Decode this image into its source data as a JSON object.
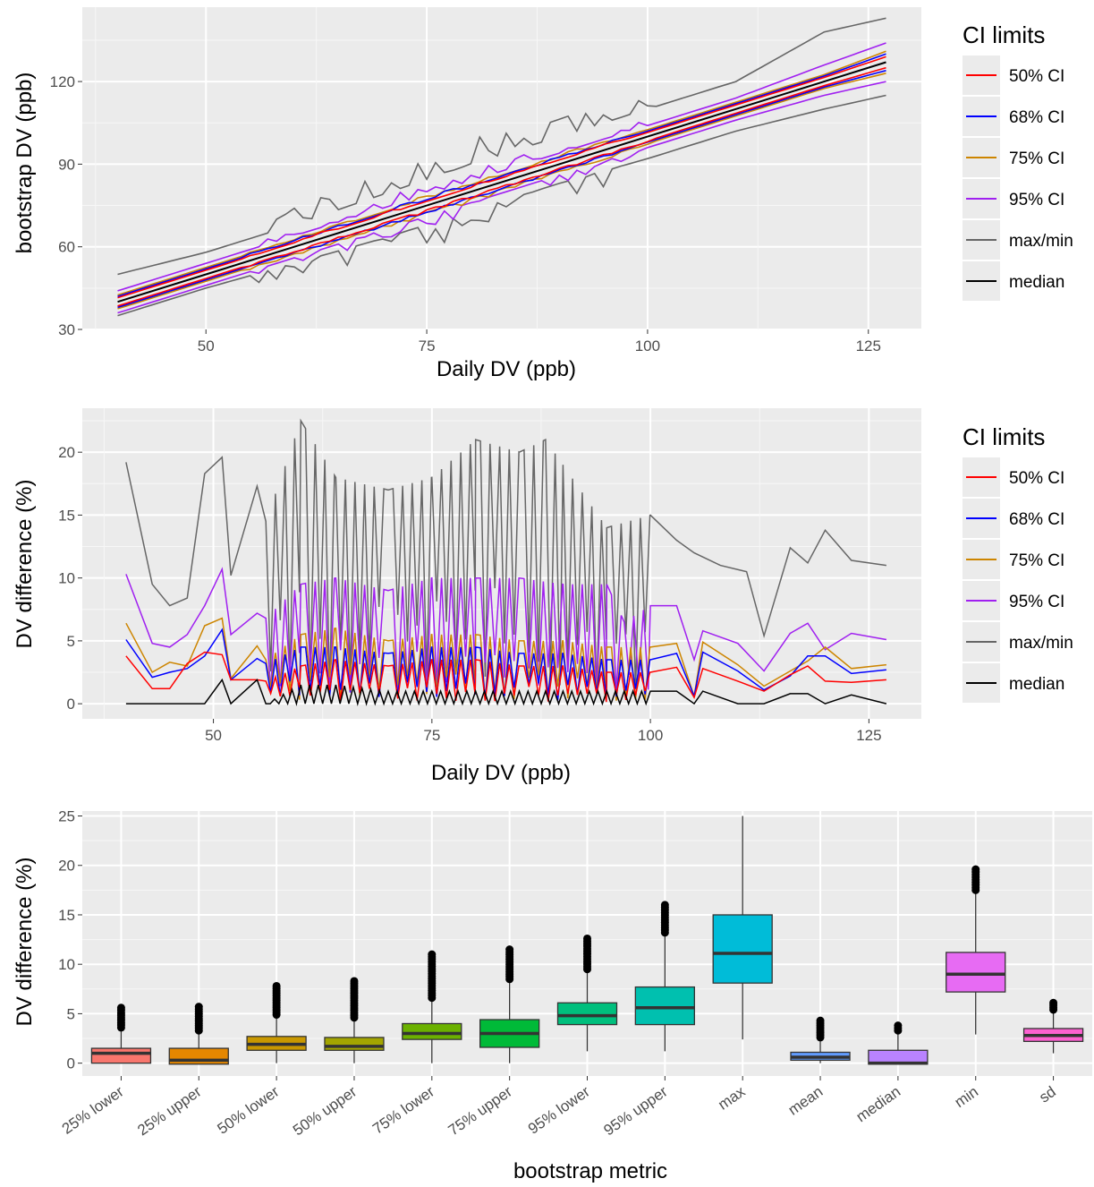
{
  "chart_data": [
    {
      "type": "line",
      "xlabel": "Daily DV (ppb)",
      "ylabel": "bootstrap DV (ppb)",
      "xlim": [
        36,
        131
      ],
      "ylim": [
        30,
        147
      ],
      "xticks": [
        "50",
        "75",
        "100",
        "125"
      ],
      "yticks": [
        "30",
        "60",
        "90",
        "120"
      ],
      "grid": true,
      "legend": {
        "title": "CI limits",
        "position": "right",
        "items": [
          "50% CI",
          "68% CI",
          "75% CI",
          "95% CI",
          "max/min",
          "median"
        ]
      },
      "series": [
        {
          "name": "50% CI",
          "color": "#ff0000",
          "x": [
            40,
            50,
            60,
            70,
            80,
            90,
            100,
            110,
            120,
            127
          ],
          "y_lower": [
            38.5,
            48.5,
            58.5,
            68.5,
            78.5,
            88.5,
            98.5,
            108.5,
            118.5,
            125
          ],
          "y_upper": [
            41.5,
            51.5,
            61.5,
            71.5,
            81.5,
            91.5,
            101.5,
            111.5,
            121.5,
            129
          ]
        },
        {
          "name": "68% CI",
          "color": "#0000ff",
          "x": [
            40,
            50,
            60,
            70,
            80,
            90,
            100,
            110,
            120,
            127
          ],
          "y_lower": [
            38,
            48,
            58,
            68,
            78,
            88,
            98,
            108,
            118,
            124
          ],
          "y_upper": [
            42,
            52,
            62,
            72,
            82,
            92,
            102,
            112,
            122,
            130
          ]
        },
        {
          "name": "75% CI",
          "color": "#cd8500",
          "x": [
            40,
            50,
            60,
            70,
            80,
            90,
            100,
            110,
            120,
            127
          ],
          "y_lower": [
            37.5,
            47.5,
            57.5,
            67.5,
            77.5,
            87.5,
            97.5,
            107.5,
            117.5,
            123
          ],
          "y_upper": [
            42.5,
            52.5,
            62.5,
            72.5,
            82.5,
            92.5,
            102.5,
            112.5,
            122.5,
            131
          ]
        },
        {
          "name": "95% CI",
          "color": "#a020f0",
          "x": [
            40,
            50,
            60,
            70,
            80,
            90,
            100,
            110,
            120,
            127
          ],
          "y_lower": [
            36,
            46,
            56,
            66,
            76,
            86,
            96,
            106,
            115,
            120
          ],
          "y_upper": [
            44,
            54,
            64,
            74,
            84,
            94,
            104,
            114,
            126,
            134
          ]
        },
        {
          "name": "max/min",
          "color": "#666666",
          "x": [
            40,
            50,
            60,
            70,
            80,
            90,
            100,
            110,
            120,
            127
          ],
          "y_lower": [
            35,
            45,
            54,
            63,
            73,
            83,
            92,
            102,
            110,
            115
          ],
          "y_upper": [
            50,
            58,
            68,
            79,
            90,
            100,
            110,
            120,
            138,
            143
          ]
        },
        {
          "name": "median",
          "color": "#000000",
          "x": [
            40,
            50,
            60,
            70,
            80,
            90,
            100,
            110,
            120,
            127
          ],
          "y": [
            40,
            50,
            60,
            70,
            80,
            90,
            100,
            110,
            120,
            127
          ]
        }
      ]
    },
    {
      "type": "line",
      "xlabel": "Daily DV (ppb)",
      "ylabel": "DV difference (%)",
      "xlim": [
        35,
        131
      ],
      "ylim": [
        -1.2,
        23.5
      ],
      "xticks": [
        "50",
        "75",
        "100",
        "125"
      ],
      "yticks": [
        "0",
        "5",
        "10",
        "15",
        "20"
      ],
      "grid": true,
      "legend": {
        "title": "CI limits",
        "position": "right",
        "items": [
          "50% CI",
          "68% CI",
          "75% CI",
          "95% CI",
          "max/min",
          "median"
        ]
      },
      "series": [
        {
          "name": "max/min",
          "color": "#666666",
          "x": [
            40,
            43,
            45,
            47,
            49,
            51,
            52,
            55,
            56,
            60,
            64,
            70,
            75,
            80,
            85,
            88,
            90,
            95,
            100,
            103,
            105,
            108,
            111,
            113,
            116,
            118,
            120,
            123,
            127
          ],
          "y": [
            19.2,
            9.5,
            7.8,
            8.4,
            18.3,
            19.6,
            10.2,
            17.3,
            14.5,
            22.5,
            18,
            17,
            18,
            21,
            20,
            21,
            19,
            14,
            15,
            13,
            12,
            11,
            10.5,
            5.4,
            12.4,
            11.2,
            13.8,
            11.4,
            11
          ]
        },
        {
          "name": "95% CI",
          "color": "#a020f0",
          "x": [
            40,
            43,
            45,
            47,
            49,
            51,
            52,
            55,
            56,
            60,
            64,
            70,
            75,
            80,
            85,
            90,
            95,
            97,
            100,
            103,
            105,
            106,
            110,
            113,
            116,
            118,
            120,
            123,
            127
          ],
          "y": [
            10.3,
            4.8,
            4.5,
            5.5,
            7.8,
            10.7,
            5.5,
            7.2,
            6.8,
            9.5,
            10,
            9,
            10,
            10,
            10,
            9.5,
            9.5,
            6.5,
            7.8,
            7.8,
            3.5,
            5.8,
            4.8,
            2.6,
            5.6,
            6.4,
            4.3,
            5.6,
            5.1
          ]
        },
        {
          "name": "75% CI",
          "color": "#cd8500",
          "x": [
            40,
            43,
            45,
            47,
            49,
            51,
            52,
            55,
            56,
            60,
            64,
            70,
            75,
            80,
            85,
            90,
            95,
            100,
            103,
            105,
            106,
            110,
            113,
            116,
            118,
            120,
            123,
            127
          ],
          "y": [
            6.4,
            2.5,
            3.3,
            3,
            6.2,
            6.8,
            2,
            4.6,
            3.5,
            5.5,
            6,
            5,
            5.5,
            5.5,
            5,
            5,
            4.5,
            4.5,
            4.8,
            0.6,
            4.9,
            3.1,
            1.4,
            2.6,
            3.4,
            4.5,
            2.8,
            3.1
          ]
        },
        {
          "name": "68% CI",
          "color": "#0000ff",
          "x": [
            40,
            43,
            45,
            47,
            49,
            51,
            52,
            55,
            56,
            60,
            64,
            70,
            75,
            80,
            85,
            90,
            95,
            100,
            103,
            105,
            106,
            110,
            113,
            116,
            118,
            120,
            123,
            127
          ],
          "y": [
            5.1,
            2.1,
            2.5,
            2.8,
            3.8,
            5.9,
            1.9,
            3.6,
            3.2,
            4.5,
            4.5,
            4,
            4.5,
            4.5,
            4,
            4,
            3.5,
            3.5,
            4,
            0.6,
            4.1,
            2.6,
            1.1,
            2.2,
            3.8,
            3.8,
            2.4,
            2.7
          ]
        },
        {
          "name": "50% CI",
          "color": "#ff0000",
          "x": [
            40,
            43,
            45,
            47,
            49,
            51,
            52,
            55,
            56,
            60,
            64,
            70,
            75,
            80,
            85,
            90,
            95,
            100,
            103,
            105,
            106,
            110,
            113,
            116,
            118,
            120,
            123,
            127
          ],
          "y": [
            3.8,
            1.2,
            1.2,
            3.2,
            4.1,
            3.9,
            1.9,
            1.9,
            1.8,
            3,
            3.5,
            3,
            3.5,
            3.5,
            3,
            3,
            2.5,
            2.5,
            2.9,
            0.5,
            2.8,
            1.8,
            1,
            2.3,
            3,
            1.8,
            1.7,
            1.9
          ]
        },
        {
          "name": "median",
          "color": "#000000",
          "x": [
            40,
            43,
            45,
            47,
            49,
            51,
            52,
            55,
            56,
            60,
            64,
            70,
            75,
            80,
            85,
            90,
            95,
            100,
            103,
            105,
            106,
            110,
            113,
            116,
            118,
            120,
            123,
            127
          ],
          "y": [
            0,
            0,
            0,
            0,
            0,
            1.9,
            0,
            1.9,
            0,
            1.5,
            1.5,
            1,
            1,
            1,
            1,
            1,
            1,
            1,
            1,
            0,
            1,
            0,
            0,
            0.8,
            0.8,
            0,
            0.7,
            0
          ]
        }
      ]
    },
    {
      "type": "box",
      "xlabel": "bootstrap metric",
      "ylabel": "DV difference (%)",
      "ylim": [
        -1.3,
        25.5
      ],
      "yticks": [
        "0",
        "5",
        "10",
        "15",
        "20",
        "25"
      ],
      "grid": true,
      "categories": [
        "25% lower",
        "25% upper",
        "50% lower",
        "50% upper",
        "75% lower",
        "75% upper",
        "95% lower",
        "95% upper",
        "max",
        "mean",
        "median",
        "min",
        "sd"
      ],
      "colors": [
        "#f8766d",
        "#e58700",
        "#c99800",
        "#a3a500",
        "#6bb100",
        "#00ba38",
        "#00bf7d",
        "#00c0af",
        "#00bcd8",
        "#619cff",
        "#b983ff",
        "#e76bf3",
        "#fd61d1"
      ],
      "boxes": [
        {
          "q1": 0,
          "median": 1,
          "q3": 1.5,
          "whisker_low": 0,
          "whisker_high": 3.5,
          "outliers_min": 3.6,
          "outliers_max": 5.6
        },
        {
          "q1": -0.1,
          "median": 0.3,
          "q3": 1.5,
          "whisker_low": -0.1,
          "whisker_high": 3.2,
          "outliers_min": 3.3,
          "outliers_max": 5.7
        },
        {
          "q1": 1.3,
          "median": 1.9,
          "q3": 2.7,
          "whisker_low": 0,
          "whisker_high": 4.8,
          "outliers_min": 4.9,
          "outliers_max": 7.8
        },
        {
          "q1": 1.3,
          "median": 1.7,
          "q3": 2.6,
          "whisker_low": 0,
          "whisker_high": 4.5,
          "outliers_min": 4.6,
          "outliers_max": 8.3
        },
        {
          "q1": 2.4,
          "median": 3,
          "q3": 4,
          "whisker_low": 0,
          "whisker_high": 6.3,
          "outliers_min": 6.6,
          "outliers_max": 11
        },
        {
          "q1": 1.6,
          "median": 3,
          "q3": 4.4,
          "whisker_low": 0,
          "whisker_high": 8.3,
          "outliers_min": 8.5,
          "outliers_max": 11.5
        },
        {
          "q1": 3.9,
          "median": 4.8,
          "q3": 6.1,
          "whisker_low": 1.2,
          "whisker_high": 9.3,
          "outliers_min": 9.5,
          "outliers_max": 12.6
        },
        {
          "q1": 3.9,
          "median": 5.6,
          "q3": 7.7,
          "whisker_low": 1.2,
          "whisker_high": 13,
          "outliers_min": 13.2,
          "outliers_max": 16
        },
        {
          "q1": 8.1,
          "median": 11.1,
          "q3": 15,
          "whisker_low": 2.4,
          "whisker_high": 25,
          "outliers_min": null,
          "outliers_max": null
        },
        {
          "q1": 0.3,
          "median": 0.6,
          "q3": 1.1,
          "whisker_low": 0,
          "whisker_high": 2.4,
          "outliers_min": 2.6,
          "outliers_max": 4.3
        },
        {
          "q1": -0.1,
          "median": 0,
          "q3": 1.3,
          "whisker_low": -0.1,
          "whisker_high": 3.2,
          "outliers_min": 3.3,
          "outliers_max": 3.8
        },
        {
          "q1": 7.2,
          "median": 9,
          "q3": 11.2,
          "whisker_low": 2.9,
          "whisker_high": 17.2,
          "outliers_min": 17.5,
          "outliers_max": 19.6
        },
        {
          "q1": 2.2,
          "median": 2.8,
          "q3": 3.5,
          "whisker_low": 1,
          "whisker_high": 5.3,
          "outliers_min": 5.4,
          "outliers_max": 6.1
        }
      ]
    }
  ]
}
